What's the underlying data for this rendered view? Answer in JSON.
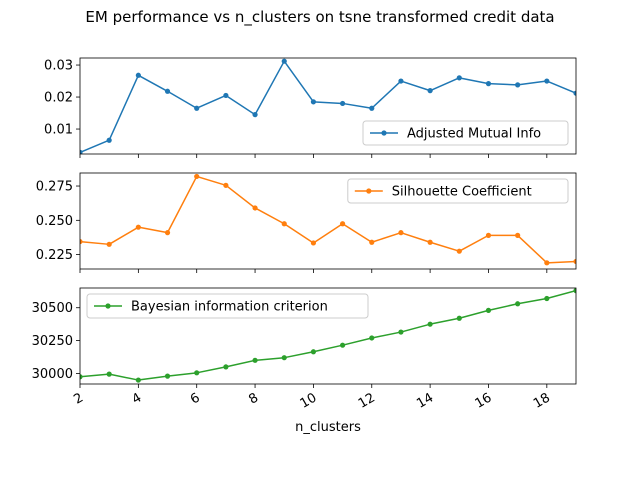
{
  "chart_data": {
    "type": "line",
    "title": "EM performance vs n_clusters on tsne transformed credit data",
    "xlabel": "n_clusters",
    "x": [
      2,
      3,
      4,
      5,
      6,
      7,
      8,
      9,
      10,
      11,
      12,
      13,
      14,
      15,
      16,
      17,
      18,
      19
    ],
    "xlim": [
      2,
      19
    ],
    "xticks": [
      2,
      4,
      6,
      8,
      10,
      12,
      14,
      16,
      18
    ],
    "grid": false,
    "panels": [
      {
        "name": "Adjusted Mutual Info",
        "color": "#1f77b4",
        "legend_loc": "lower right",
        "ylim": [
          0.0022,
          0.0322
        ],
        "yticks": [
          0.01,
          0.02,
          0.03
        ],
        "ytick_labels": [
          "0.01",
          "0.02",
          "0.03"
        ],
        "values": [
          0.0027,
          0.0065,
          0.0268,
          0.0218,
          0.0165,
          0.0205,
          0.0145,
          0.0312,
          0.0185,
          0.018,
          0.0165,
          0.025,
          0.022,
          0.026,
          0.0242,
          0.0238,
          0.025,
          0.0212
        ]
      },
      {
        "name": "Silhouette Coefficient",
        "color": "#ff7f0e",
        "legend_loc": "upper right",
        "ylim": [
          0.2145,
          0.2845
        ],
        "yticks": [
          0.225,
          0.25,
          0.275
        ],
        "ytick_labels": [
          "0.225",
          "0.250",
          "0.275"
        ],
        "values": [
          0.2345,
          0.2325,
          0.245,
          0.241,
          0.282,
          0.2755,
          0.259,
          0.2475,
          0.2335,
          0.2475,
          0.234,
          0.241,
          0.234,
          0.2275,
          0.239,
          0.239,
          0.219,
          0.22
        ]
      },
      {
        "name": "Bayesian information criterion",
        "color": "#2ca02c",
        "legend_loc": "upper left",
        "ylim": [
          29920,
          30650
        ],
        "yticks": [
          30000,
          30250,
          30500
        ],
        "ytick_labels": [
          "30000",
          "30250",
          "30500"
        ],
        "values": [
          29975,
          29995,
          29950,
          29980,
          30005,
          30050,
          30100,
          30120,
          30165,
          30215,
          30270,
          30315,
          30375,
          30420,
          30480,
          30530,
          30570,
          30630
        ]
      }
    ]
  }
}
